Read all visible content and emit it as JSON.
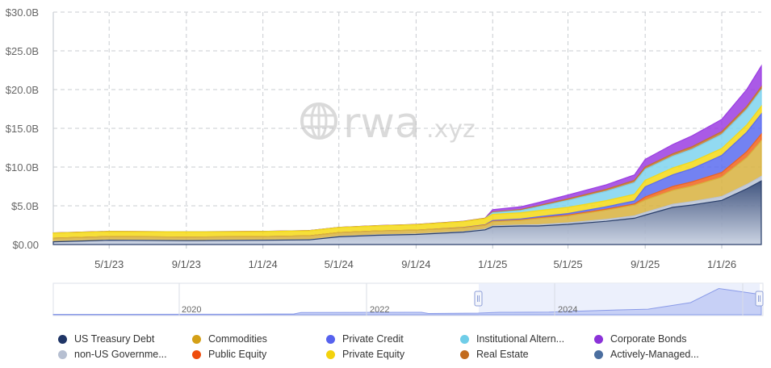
{
  "chart_data": {
    "type": "area",
    "stacked": true,
    "yaxis": {
      "ticks": [
        "$0.00",
        "$5.0B",
        "$10.0B",
        "$15.0B",
        "$20.0B",
        "$25.0B",
        "$30.0B"
      ],
      "ylim": [
        0,
        30
      ],
      "unit": "B USD"
    },
    "xaxis": {
      "ticks": [
        "5/1/23",
        "9/1/23",
        "1/1/24",
        "5/1/24",
        "9/1/24",
        "1/1/25",
        "5/1/25",
        "9/1/25",
        "1/1/26"
      ]
    },
    "grid": true,
    "legend_position": "bottom",
    "x": [
      "2023-02-01",
      "2023-05-01",
      "2023-09-01",
      "2024-01-01",
      "2024-03-15",
      "2024-05-01",
      "2024-07-01",
      "2024-09-01",
      "2024-11-15",
      "2024-12-20",
      "2025-01-01",
      "2025-02-15",
      "2025-03-15",
      "2025-05-01",
      "2025-07-01",
      "2025-08-15",
      "2025-09-01",
      "2025-10-15",
      "2025-11-15",
      "2026-01-01",
      "2026-02-10",
      "2026-03-05"
    ],
    "series": [
      {
        "name": "US Treasury Debt",
        "color": "#2d4372",
        "values": [
          0.35,
          0.55,
          0.5,
          0.55,
          0.6,
          1.0,
          1.2,
          1.3,
          1.6,
          1.9,
          2.3,
          2.4,
          2.4,
          2.6,
          3.0,
          3.4,
          3.8,
          4.8,
          5.1,
          5.7,
          7.2,
          8.2
        ]
      },
      {
        "name": "non-US Government Debt",
        "color": "#b9c3d6",
        "values": [
          0.02,
          0.02,
          0.02,
          0.02,
          0.02,
          0.04,
          0.05,
          0.05,
          0.06,
          0.08,
          0.1,
          0.12,
          0.15,
          0.2,
          0.25,
          0.3,
          0.35,
          0.4,
          0.45,
          0.5,
          0.55,
          0.6
        ]
      },
      {
        "name": "Commodities",
        "color": "#d8b23e",
        "values": [
          0.45,
          0.45,
          0.45,
          0.45,
          0.5,
          0.5,
          0.5,
          0.5,
          0.5,
          0.5,
          0.55,
          0.6,
          0.8,
          0.9,
          1.2,
          1.4,
          1.6,
          1.8,
          2.0,
          2.5,
          3.5,
          4.6
        ]
      },
      {
        "name": "Public Equity",
        "color": "#f0641e",
        "values": [
          0,
          0,
          0,
          0,
          0,
          0,
          0,
          0,
          0.02,
          0.03,
          0.05,
          0.06,
          0.08,
          0.1,
          0.12,
          0.14,
          0.4,
          0.5,
          0.55,
          0.6,
          0.75,
          0.85
        ]
      },
      {
        "name": "Private Credit",
        "color": "#5b6cf0",
        "values": [
          0,
          0,
          0,
          0,
          0,
          0,
          0,
          0,
          0.02,
          0.04,
          0.1,
          0.12,
          0.15,
          0.2,
          0.3,
          0.4,
          1.3,
          1.5,
          1.7,
          2.2,
          2.5,
          2.6
        ]
      },
      {
        "name": "Private Equity",
        "color": "#f5d916",
        "values": [
          0.65,
          0.65,
          0.65,
          0.65,
          0.65,
          0.65,
          0.65,
          0.7,
          0.75,
          0.8,
          0.8,
          0.8,
          0.8,
          0.8,
          0.8,
          0.85,
          0.85,
          0.9,
          0.9,
          0.9,
          0.95,
          1.0
        ]
      },
      {
        "name": "Institutional Alternative Funds",
        "color": "#7fd3ef",
        "values": [
          0,
          0,
          0,
          0,
          0,
          0,
          0,
          0,
          0,
          0,
          0.2,
          0.3,
          0.5,
          0.9,
          1.2,
          1.5,
          1.4,
          1.5,
          1.6,
          1.8,
          2.0,
          2.1
        ]
      },
      {
        "name": "Real Estate",
        "color": "#c4762b",
        "values": [
          0.03,
          0.03,
          0.03,
          0.03,
          0.03,
          0.03,
          0.04,
          0.04,
          0.05,
          0.06,
          0.1,
          0.12,
          0.14,
          0.2,
          0.25,
          0.3,
          0.3,
          0.32,
          0.34,
          0.36,
          0.38,
          0.4
        ]
      },
      {
        "name": "Corporate Bonds",
        "color": "#9b3de2",
        "values": [
          0,
          0,
          0,
          0,
          0,
          0,
          0,
          0,
          0,
          0,
          0.3,
          0.35,
          0.4,
          0.5,
          0.6,
          0.7,
          1.0,
          1.2,
          1.4,
          1.6,
          2.2,
          2.7
        ]
      },
      {
        "name": "Actively-Managed Strategies",
        "color": "#4e70a4",
        "values": [
          0,
          0,
          0,
          0,
          0,
          0,
          0,
          0,
          0,
          0,
          0,
          0,
          0,
          0,
          0,
          0,
          0,
          0,
          0,
          0,
          0,
          0
        ]
      }
    ]
  },
  "navigator": {
    "year_labels": [
      "2020",
      "2022",
      "2024"
    ]
  },
  "legend": {
    "items": [
      {
        "label": "US Treasury Debt",
        "color": "#1f3566"
      },
      {
        "label": "Commodities",
        "color": "#d4a017"
      },
      {
        "label": "Private Credit",
        "color": "#5662ee"
      },
      {
        "label": "Institutional Altern...",
        "color": "#6fcde8"
      },
      {
        "label": "Corporate Bonds",
        "color": "#8b32d8"
      },
      {
        "label": "non-US Governme...",
        "color": "#b6bfd1"
      },
      {
        "label": "Public Equity",
        "color": "#ee4c0c"
      },
      {
        "label": "Private Equity",
        "color": "#f3d20d"
      },
      {
        "label": "Real Estate",
        "color": "#c26b1e"
      },
      {
        "label": "Actively-Managed...",
        "color": "#4b6e9f"
      }
    ]
  },
  "watermark": {
    "text": "rwa",
    "suffix": ".xyz"
  }
}
